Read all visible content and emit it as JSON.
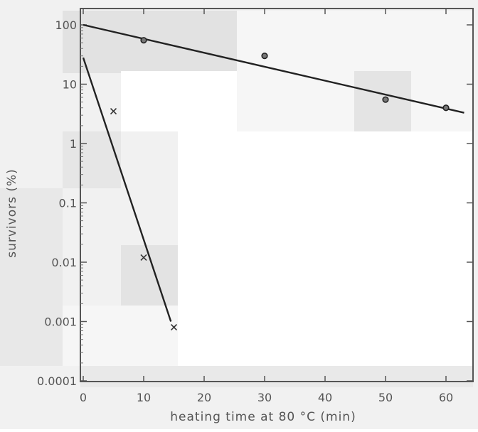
{
  "chart_data": {
    "type": "scatter",
    "xlabel": "heating time at 80 °C (min)",
    "ylabel": "survivors (%)",
    "xlim": [
      0,
      65
    ],
    "ylim": [
      0.0001,
      100
    ],
    "yscale": "log",
    "x_ticks": [
      0,
      10,
      20,
      30,
      40,
      50,
      60
    ],
    "x_tick_labels": [
      "0",
      "10",
      "20",
      "30",
      "40",
      "50",
      "60"
    ],
    "y_ticks": [
      0.0001,
      0.001,
      0.01,
      0.1,
      1,
      10,
      100
    ],
    "y_tick_labels": [
      "0.0001",
      "0.001",
      "0.01",
      "0.1",
      "1",
      "10",
      "100"
    ],
    "grid": false,
    "series": [
      {
        "marker": "circle",
        "points": [
          {
            "x": 10,
            "y": 55
          },
          {
            "x": 30,
            "y": 30
          },
          {
            "x": 50,
            "y": 5.5
          },
          {
            "x": 60,
            "y": 4
          }
        ],
        "fit_line": [
          [
            0,
            100
          ],
          [
            63,
            3.3
          ]
        ],
        "color": "#222222"
      },
      {
        "marker": "x",
        "points": [
          {
            "x": 5,
            "y": 3.5
          },
          {
            "x": 10,
            "y": 0.012
          },
          {
            "x": 15,
            "y": 0.0008
          }
        ],
        "fit_line": [
          [
            0,
            28
          ],
          [
            14.5,
            0.001
          ]
        ],
        "color": "#222222"
      }
    ]
  }
}
